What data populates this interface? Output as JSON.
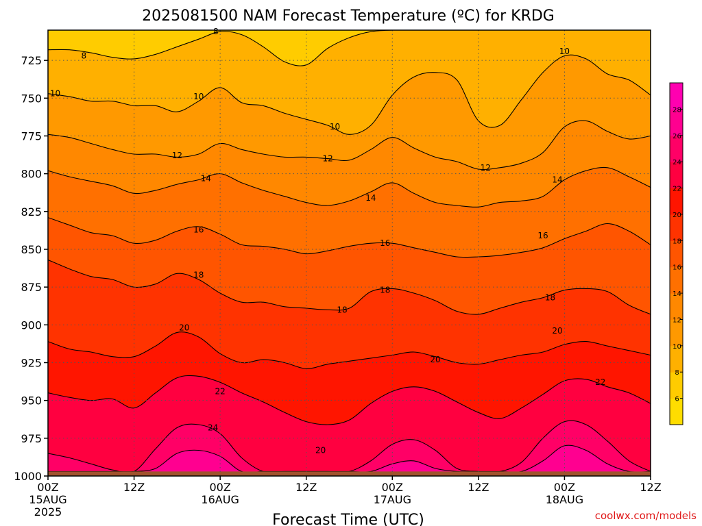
{
  "chart_data": {
    "type": "heatmap",
    "title": "2025081500 NAM Forecast Temperature (ºC) for KRDG",
    "xlabel": "Forecast Time (UTC)",
    "credit": "coolwx.com/models",
    "y_axis": {
      "title": "",
      "scale": "inverted pressure (hPa)",
      "range": [
        1000,
        705
      ],
      "ticks": [
        725,
        750,
        775,
        800,
        825,
        850,
        875,
        900,
        925,
        950,
        975,
        1000
      ]
    },
    "x_axis": {
      "range_hours": [
        0,
        84
      ],
      "ticks": [
        {
          "hour": 0,
          "label": "00Z",
          "date": "15AUG",
          "year": "2025"
        },
        {
          "hour": 12,
          "label": "12Z",
          "date": "",
          "year": ""
        },
        {
          "hour": 24,
          "label": "00Z",
          "date": "16AUG",
          "year": ""
        },
        {
          "hour": 36,
          "label": "12Z",
          "date": "",
          "year": ""
        },
        {
          "hour": 48,
          "label": "00Z",
          "date": "17AUG",
          "year": ""
        },
        {
          "hour": 60,
          "label": "12Z",
          "date": "",
          "year": ""
        },
        {
          "hour": 72,
          "label": "00Z",
          "date": "18AUG",
          "year": ""
        },
        {
          "hour": 84,
          "label": "12Z",
          "date": "",
          "year": ""
        }
      ]
    },
    "grid": true,
    "colorbar": {
      "placement": "right",
      "levels": [
        4,
        6,
        8,
        10,
        12,
        14,
        16,
        18,
        20,
        22,
        24,
        26,
        28,
        30
      ],
      "tick_labels": [
        "6",
        "8",
        "10",
        "12",
        "14",
        "16",
        "18",
        "20",
        "22",
        "24",
        "26",
        "28"
      ],
      "colors": [
        "#ffdd00",
        "#ffcc00",
        "#ffb000",
        "#ff9900",
        "#ff8800",
        "#ff7000",
        "#ff5500",
        "#ff3300",
        "#ff1500",
        "#ff0040",
        "#ff0066",
        "#ff0090",
        "#ff00b0"
      ]
    },
    "surface_color": "#a0522d",
    "surface_pressure_hpa": 997,
    "isotherms": [
      {
        "value": 8,
        "label": "8",
        "hours": [
          0,
          3,
          6,
          9,
          12,
          15,
          18,
          21,
          24,
          27,
          30,
          33,
          36,
          39,
          42,
          45,
          48,
          51,
          54,
          57,
          60,
          63,
          66,
          69,
          72,
          75,
          78,
          81,
          84
        ],
        "pressure": [
          718,
          718,
          720,
          723,
          724,
          721,
          716,
          711,
          706,
          708,
          716,
          726,
          728,
          717,
          710,
          706,
          705,
          705,
          705,
          705,
          705,
          705,
          705,
          705,
          705,
          705,
          705,
          705,
          705
        ]
      },
      {
        "value": 10,
        "label": "10",
        "hours": [
          0,
          3,
          6,
          9,
          12,
          15,
          18,
          21,
          24,
          27,
          30,
          33,
          36,
          39,
          42,
          45,
          48,
          51,
          54,
          57,
          60,
          63,
          66,
          69,
          72,
          75,
          78,
          81,
          84
        ],
        "pressure": [
          747,
          749,
          752,
          752,
          755,
          755,
          759,
          752,
          743,
          753,
          755,
          760,
          764,
          768,
          774,
          768,
          748,
          736,
          733,
          738,
          765,
          768,
          751,
          733,
          722,
          724,
          734,
          738,
          748
        ]
      },
      {
        "value": 12,
        "label": "12",
        "hours": [
          0,
          3,
          6,
          9,
          12,
          15,
          18,
          21,
          24,
          27,
          30,
          33,
          36,
          39,
          42,
          45,
          48,
          51,
          54,
          57,
          60,
          63,
          66,
          69,
          72,
          75,
          78,
          81,
          84
        ],
        "pressure": [
          774,
          776,
          780,
          784,
          787,
          787,
          789,
          787,
          780,
          784,
          787,
          789,
          789,
          790,
          791,
          784,
          776,
          783,
          789,
          792,
          797,
          796,
          793,
          786,
          769,
          765,
          772,
          777,
          775
        ]
      },
      {
        "value": 14,
        "label": "14",
        "hours": [
          0,
          3,
          6,
          9,
          12,
          15,
          18,
          21,
          24,
          27,
          30,
          33,
          36,
          39,
          42,
          45,
          48,
          51,
          54,
          57,
          60,
          63,
          66,
          69,
          72,
          75,
          78,
          81,
          84
        ],
        "pressure": [
          798,
          802,
          805,
          808,
          813,
          811,
          807,
          804,
          800,
          806,
          811,
          815,
          819,
          821,
          818,
          812,
          806,
          813,
          819,
          821,
          822,
          819,
          818,
          815,
          804,
          798,
          796,
          802,
          809
        ]
      },
      {
        "value": 16,
        "label": "16",
        "hours": [
          0,
          3,
          6,
          9,
          12,
          15,
          18,
          21,
          24,
          27,
          30,
          33,
          36,
          39,
          42,
          45,
          48,
          51,
          54,
          57,
          60,
          63,
          66,
          69,
          72,
          75,
          78,
          81,
          84
        ],
        "pressure": [
          829,
          834,
          839,
          841,
          846,
          844,
          838,
          835,
          840,
          847,
          848,
          850,
          853,
          851,
          848,
          846,
          846,
          849,
          852,
          855,
          855,
          854,
          852,
          849,
          843,
          838,
          833,
          838,
          847
        ]
      },
      {
        "value": 18,
        "label": "18",
        "hours": [
          0,
          3,
          6,
          9,
          12,
          15,
          18,
          21,
          24,
          27,
          30,
          33,
          36,
          39,
          42,
          45,
          48,
          51,
          54,
          57,
          60,
          63,
          66,
          69,
          72,
          75,
          78,
          81,
          84
        ],
        "pressure": [
          857,
          863,
          868,
          870,
          875,
          873,
          866,
          870,
          879,
          885,
          885,
          888,
          889,
          890,
          889,
          878,
          876,
          879,
          884,
          891,
          893,
          889,
          885,
          882,
          877,
          876,
          878,
          887,
          893
        ]
      },
      {
        "value": 20,
        "label": "20",
        "hours": [
          0,
          3,
          6,
          9,
          12,
          15,
          18,
          21,
          24,
          27,
          30,
          33,
          36,
          39,
          42,
          45,
          48,
          51,
          54,
          57,
          60,
          63,
          66,
          69,
          72,
          75,
          78,
          81,
          84
        ],
        "pressure": [
          911,
          916,
          918,
          921,
          921,
          914,
          905,
          908,
          919,
          925,
          923,
          925,
          929,
          926,
          924,
          922,
          920,
          918,
          921,
          925,
          926,
          923,
          920,
          918,
          913,
          911,
          914,
          917,
          920
        ]
      },
      {
        "value": 22,
        "label": "22",
        "hours": [
          0,
          3,
          6,
          9,
          12,
          15,
          18,
          21,
          24,
          27,
          30,
          33,
          36,
          39,
          42,
          45,
          48,
          51,
          54,
          57,
          60,
          63,
          66,
          69,
          72,
          75,
          78,
          81,
          84
        ],
        "pressure": [
          945,
          948,
          950,
          949,
          955,
          945,
          935,
          934,
          938,
          945,
          951,
          958,
          964,
          966,
          963,
          952,
          944,
          941,
          944,
          951,
          958,
          962,
          955,
          946,
          937,
          936,
          941,
          945,
          952
        ]
      },
      {
        "value": 24,
        "label": "24",
        "hours": [
          0,
          3,
          6,
          9,
          12,
          15,
          18,
          21,
          24,
          27,
          30,
          33,
          36,
          39,
          42,
          45,
          48,
          51,
          54,
          57,
          60,
          63,
          66,
          69,
          72,
          75,
          78,
          81,
          84
        ],
        "pressure": [
          985,
          988,
          992,
          996,
          997,
          982,
          968,
          966,
          972,
          988,
          997,
          997,
          997,
          997,
          997,
          990,
          979,
          976,
          983,
          995,
          997,
          997,
          991,
          975,
          964,
          966,
          977,
          990,
          997
        ]
      },
      {
        "value": 26,
        "label": "",
        "hours": [
          0,
          3,
          6,
          9,
          12,
          15,
          18,
          21,
          24,
          27,
          30,
          33,
          36,
          39,
          42,
          45,
          48,
          51,
          54,
          57,
          60,
          63,
          66,
          69,
          72,
          75,
          78,
          81,
          84
        ],
        "pressure": [
          997,
          997,
          997,
          997,
          997,
          995,
          985,
          983,
          987,
          997,
          997,
          997,
          997,
          997,
          997,
          997,
          992,
          990,
          995,
          997,
          997,
          997,
          997,
          990,
          980,
          983,
          992,
          997,
          997
        ]
      }
    ],
    "contour_labels": [
      {
        "text": "8",
        "hour": 23.4,
        "pressure": 706
      },
      {
        "text": "8",
        "hour": 5.0,
        "pressure": 722
      },
      {
        "text": "10",
        "hour": 1.0,
        "pressure": 747
      },
      {
        "text": "10",
        "hour": 21.0,
        "pressure": 749
      },
      {
        "text": "10",
        "hour": 40.0,
        "pressure": 769
      },
      {
        "text": "10",
        "hour": 72.0,
        "pressure": 719
      },
      {
        "text": "12",
        "hour": 18.0,
        "pressure": 788
      },
      {
        "text": "12",
        "hour": 39.0,
        "pressure": 790
      },
      {
        "text": "12",
        "hour": 61.0,
        "pressure": 796
      },
      {
        "text": "14",
        "hour": 22.0,
        "pressure": 803
      },
      {
        "text": "14",
        "hour": 45.0,
        "pressure": 816
      },
      {
        "text": "14",
        "hour": 71.0,
        "pressure": 804
      },
      {
        "text": "16",
        "hour": 21.0,
        "pressure": 837
      },
      {
        "text": "16",
        "hour": 47.0,
        "pressure": 846
      },
      {
        "text": "16",
        "hour": 69.0,
        "pressure": 841
      },
      {
        "text": "18",
        "hour": 21.0,
        "pressure": 867
      },
      {
        "text": "18",
        "hour": 41.0,
        "pressure": 890
      },
      {
        "text": "18",
        "hour": 47.0,
        "pressure": 877
      },
      {
        "text": "18",
        "hour": 70.0,
        "pressure": 882
      },
      {
        "text": "20",
        "hour": 19.0,
        "pressure": 902
      },
      {
        "text": "20",
        "hour": 54.0,
        "pressure": 923
      },
      {
        "text": "20",
        "hour": 71.0,
        "pressure": 904
      },
      {
        "text": "20",
        "hour": 38.0,
        "pressure": 983
      },
      {
        "text": "22",
        "hour": 24.0,
        "pressure": 944
      },
      {
        "text": "22",
        "hour": 77.0,
        "pressure": 938
      },
      {
        "text": "24",
        "hour": 23.0,
        "pressure": 968
      }
    ]
  }
}
